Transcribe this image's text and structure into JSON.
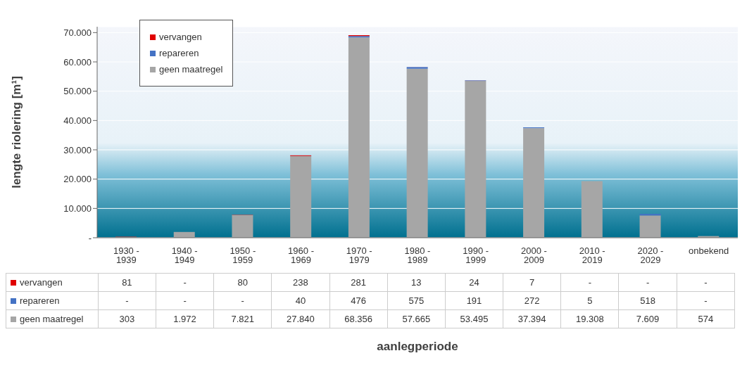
{
  "chart_data": {
    "type": "bar",
    "stacked": true,
    "annotations": [
      "aanlegperiode"
    ],
    "ylabel": "lengte riolering [m¹]",
    "categories": [
      "1930 - 1939",
      "1940 - 1949",
      "1950 - 1959",
      "1960 - 1969",
      "1970 - 1979",
      "1980 - 1989",
      "1990 - 1999",
      "2000 - 2009",
      "2010 - 2019",
      "2020 - 2029",
      "onbekend"
    ],
    "series": [
      {
        "name": "geen maatregel",
        "color": "#a6a6a6",
        "values": [
          303,
          1972,
          7821,
          27840,
          68356,
          57665,
          53495,
          37394,
          19308,
          7609,
          574
        ],
        "value_labels": [
          "303",
          "1.972",
          "7.821",
          "27.840",
          "68.356",
          "57.665",
          "53.495",
          "37.394",
          "19.308",
          "7.609",
          "574"
        ]
      },
      {
        "name": "repareren",
        "color": "#4472c4",
        "values": [
          0,
          0,
          0,
          40,
          476,
          575,
          191,
          272,
          5,
          518,
          0
        ],
        "value_labels": [
          "-",
          "-",
          "-",
          "40",
          "476",
          "575",
          "191",
          "272",
          "5",
          "518",
          "-"
        ]
      },
      {
        "name": "vervangen",
        "color": "#e00000",
        "values": [
          81,
          0,
          80,
          238,
          281,
          13,
          24,
          7,
          0,
          0,
          0
        ],
        "value_labels": [
          "81",
          "-",
          "80",
          "238",
          "281",
          "13",
          "24",
          "7",
          "-",
          "-",
          "-"
        ]
      }
    ],
    "ylim": [
      0,
      72000
    ],
    "yticks": [
      {
        "value": 0,
        "label": "-"
      },
      {
        "value": 10000,
        "label": "10.000"
      },
      {
        "value": 20000,
        "label": "20.000"
      },
      {
        "value": 30000,
        "label": "30.000"
      },
      {
        "value": 40000,
        "label": "40.000"
      },
      {
        "value": 50000,
        "label": "50.000"
      },
      {
        "value": 60000,
        "label": "60.000"
      },
      {
        "value": 70000,
        "label": "70.000"
      }
    ],
    "grid": "y",
    "legend": "top left"
  }
}
